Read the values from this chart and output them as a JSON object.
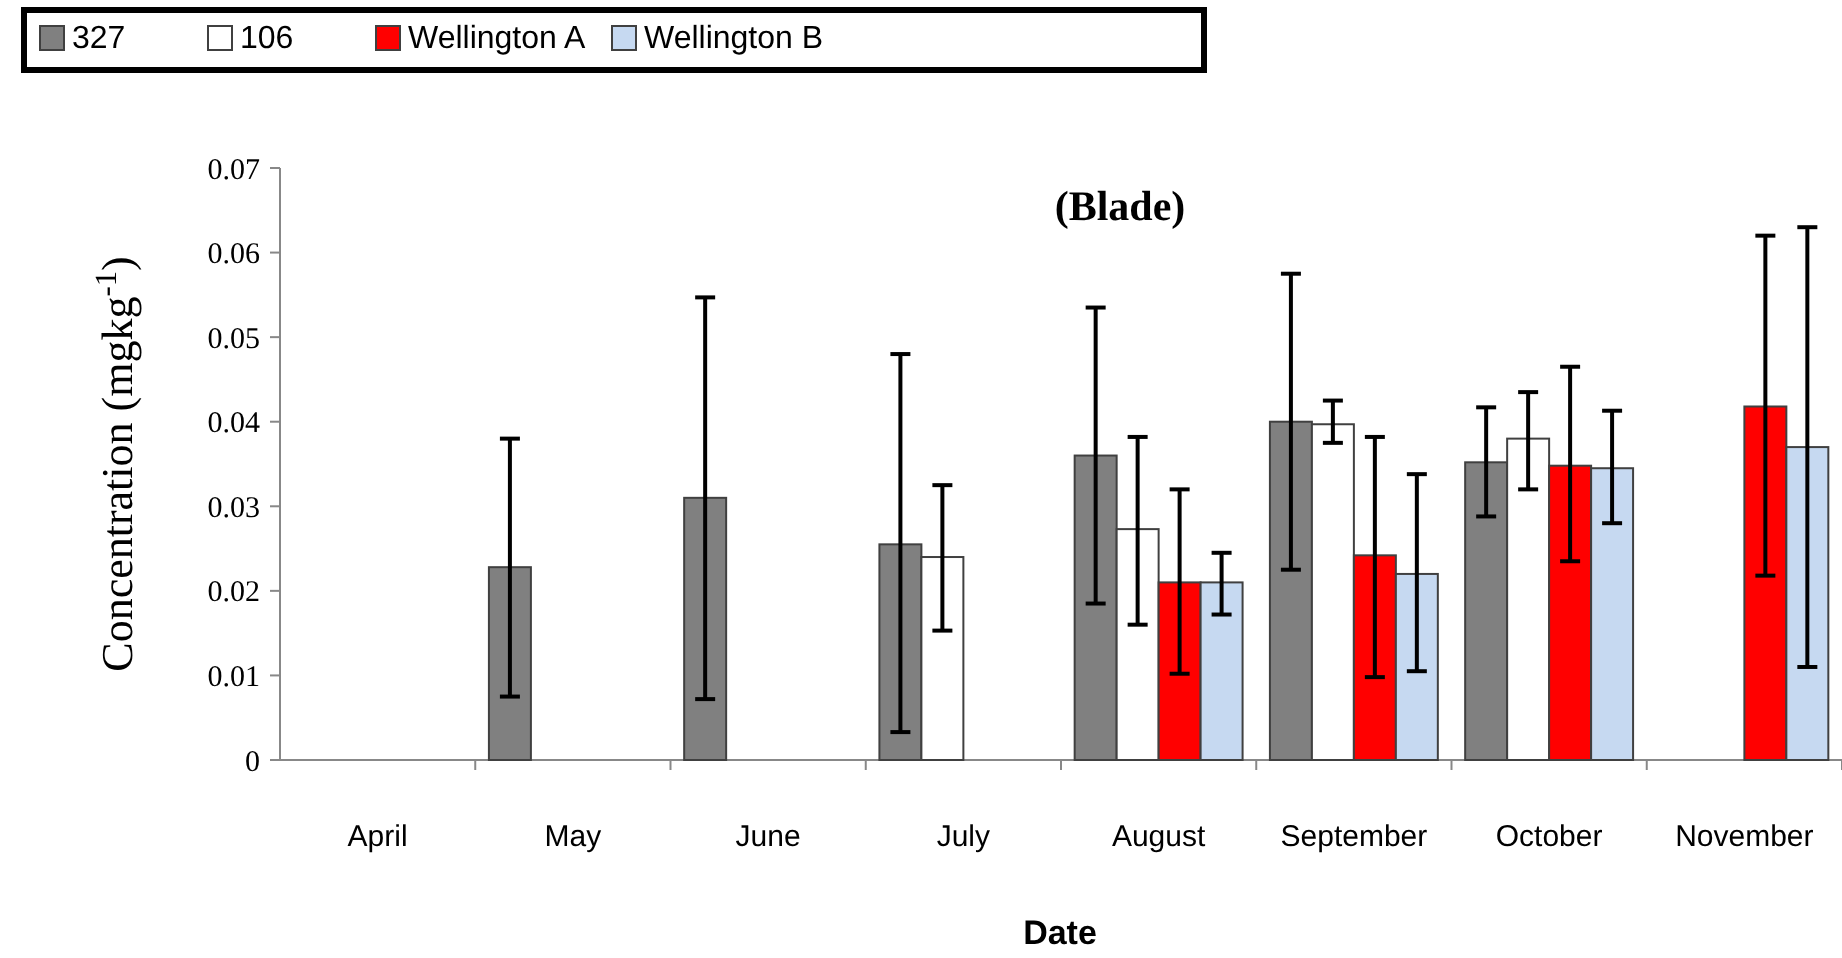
{
  "chart_data": {
    "type": "bar",
    "title": "(Blade)",
    "xlabel": "Date",
    "ylabel": "Concentration (mgkg$^{-1}$)",
    "categories": [
      "April",
      "May",
      "June",
      "July",
      "August",
      "September",
      "October",
      "November"
    ],
    "series": [
      {
        "name": "327",
        "color": "#808080",
        "values": [
          null,
          0.0228,
          0.031,
          0.0255,
          0.036,
          0.04,
          0.0352,
          null
        ],
        "errors": [
          null,
          [
            0.0075,
            0.038
          ],
          [
            0.0072,
            0.0547
          ],
          [
            0.0033,
            0.048
          ],
          [
            0.0185,
            0.0535
          ],
          [
            0.0225,
            0.0575
          ],
          [
            0.0288,
            0.0417
          ],
          null
        ]
      },
      {
        "name": "106",
        "color": "#ffffff",
        "values": [
          null,
          null,
          null,
          0.024,
          0.0273,
          0.0397,
          0.038,
          null
        ],
        "errors": [
          null,
          null,
          null,
          [
            0.0153,
            0.0325
          ],
          [
            0.016,
            0.0382
          ],
          [
            0.0375,
            0.0425
          ],
          [
            0.032,
            0.0435
          ],
          null
        ]
      },
      {
        "name": "Wellington A",
        "color": "#ff0000",
        "values": [
          null,
          null,
          null,
          null,
          0.021,
          0.0242,
          0.0348,
          0.0418
        ],
        "errors": [
          null,
          null,
          null,
          null,
          [
            0.0102,
            0.032
          ],
          [
            0.0098,
            0.0382
          ],
          [
            0.0235,
            0.0465
          ],
          [
            0.0218,
            0.062
          ]
        ]
      },
      {
        "name": "Wellington B",
        "color": "#c6d9f1",
        "values": [
          null,
          null,
          null,
          null,
          0.021,
          0.022,
          0.0345,
          0.037
        ],
        "errors": [
          null,
          null,
          null,
          null,
          [
            0.0172,
            0.0245
          ],
          [
            0.0105,
            0.0338
          ],
          [
            0.028,
            0.0413
          ],
          [
            0.011,
            0.063
          ]
        ]
      }
    ],
    "ylim": [
      0,
      0.07
    ],
    "yticks": [
      0,
      0.01,
      0.02,
      0.03,
      0.04,
      0.05,
      0.06,
      0.07
    ],
    "grid": false,
    "legend": "top left"
  }
}
